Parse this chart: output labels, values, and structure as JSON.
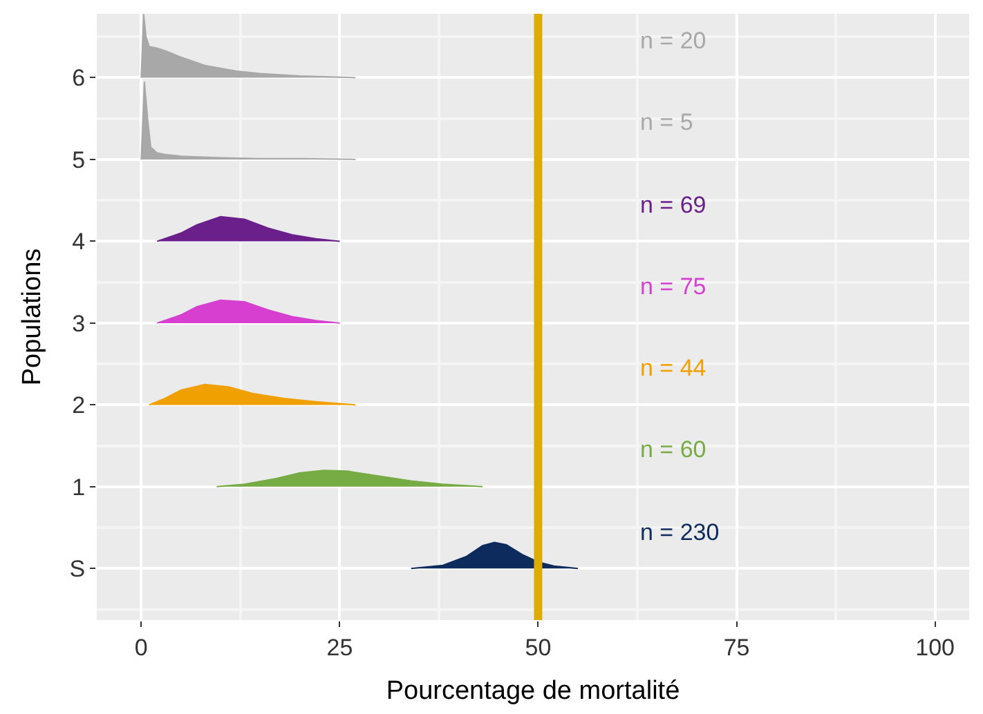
{
  "chart_data": {
    "type": "area",
    "xlabel": "Pourcentage de mortalité",
    "ylabel": "Populations",
    "xlim": [
      -5.6,
      104.3
    ],
    "xticks": [
      0,
      25,
      50,
      75,
      100
    ],
    "ylim": [
      -0.63,
      6.78
    ],
    "yticks": [
      {
        "value": 0,
        "label": "S"
      },
      1,
      2,
      3,
      4,
      5,
      6
    ],
    "grid": true,
    "ref_lines": [
      {
        "axis": "x",
        "value": 50,
        "color": "#dcac00"
      }
    ],
    "series": [
      {
        "name": "n = 230",
        "color": "#0d2b5c",
        "x": [
          34,
          38,
          41,
          43,
          44.5,
          46,
          48,
          50,
          52,
          55
        ],
        "values": [
          0,
          0.04,
          0.15,
          0.28,
          0.32,
          0.29,
          0.17,
          0.08,
          0.03,
          0
        ]
      },
      {
        "name": "n = 60",
        "color": "#77ab43",
        "x": [
          9.5,
          13,
          17,
          20,
          23,
          26,
          30,
          34,
          38,
          43
        ],
        "values": [
          1,
          1.03,
          1.1,
          1.17,
          1.2,
          1.19,
          1.13,
          1.07,
          1.03,
          1
        ]
      },
      {
        "name": "n = 44",
        "color": "#f0a000",
        "x": [
          1,
          3,
          5,
          8,
          11,
          14,
          18,
          22,
          27
        ],
        "values": [
          2,
          2.08,
          2.18,
          2.25,
          2.22,
          2.14,
          2.08,
          2.04,
          2
        ]
      },
      {
        "name": "n = 75",
        "color": "#d63fd0",
        "x": [
          2,
          5,
          7,
          10,
          13,
          16,
          19,
          22,
          25
        ],
        "values": [
          3,
          3.1,
          3.2,
          3.28,
          3.26,
          3.16,
          3.08,
          3.03,
          3
        ]
      },
      {
        "name": "n = 69",
        "color": "#6a1f8a",
        "x": [
          2,
          5,
          7,
          10,
          13,
          16,
          19,
          22,
          25
        ],
        "values": [
          4,
          4.1,
          4.2,
          4.3,
          4.27,
          4.16,
          4.08,
          4.03,
          4
        ]
      },
      {
        "name": "n = 5",
        "color": "#a8a8a8",
        "x": [
          0,
          0.4,
          0.8,
          1.2,
          2,
          3,
          5,
          10,
          15,
          20,
          27
        ],
        "values": [
          5,
          5.95,
          5.5,
          5.15,
          5.08,
          5.06,
          5.04,
          5.02,
          5.01,
          5.01,
          5
        ]
      },
      {
        "name": "n = 20",
        "color": "#a8a8a8",
        "x": [
          0,
          0.3,
          0.6,
          1,
          2,
          3,
          5,
          8,
          12,
          15,
          20,
          27
        ],
        "values": [
          6,
          6.78,
          6.5,
          6.38,
          6.36,
          6.33,
          6.25,
          6.15,
          6.08,
          6.05,
          6.02,
          6
        ]
      }
    ]
  }
}
